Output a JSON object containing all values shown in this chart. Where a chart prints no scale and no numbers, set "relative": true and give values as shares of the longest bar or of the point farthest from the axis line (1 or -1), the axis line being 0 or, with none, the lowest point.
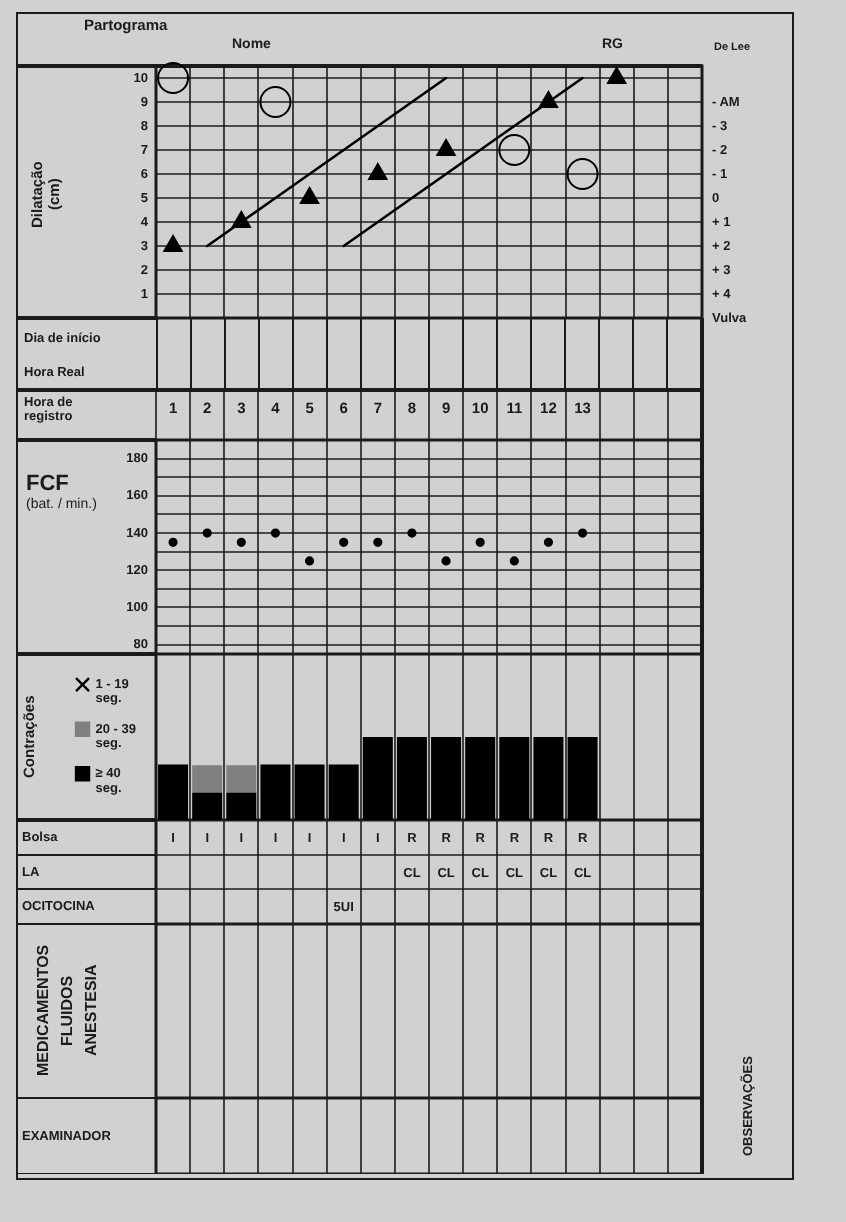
{
  "chart_data": [
    {
      "type": "scatter",
      "title": "Partograma",
      "annotations": [
        "Nome",
        "RG"
      ],
      "ylabel": "Dilatação (cm)",
      "y2label": "De Lee",
      "categories": [
        null,
        null,
        null,
        null,
        null,
        null,
        null,
        null,
        null,
        null,
        null,
        null,
        null,
        null,
        null,
        null
      ],
      "ylim": [
        0,
        10.5
      ],
      "yticks": [
        1,
        2,
        3,
        4,
        5,
        6,
        7,
        8,
        9,
        10
      ],
      "y2lim": [
        5,
        -5.5
      ],
      "y2ticks": [
        {
          "value": -4,
          "label": "- AM"
        },
        {
          "value": -3,
          "label": "- 3"
        },
        {
          "value": -2,
          "label": "- 2"
        },
        {
          "value": -1,
          "label": "- 1"
        },
        0,
        {
          "value": 1,
          "label": "+ 1"
        },
        {
          "value": 2,
          "label": "+ 2"
        },
        {
          "value": 3,
          "label": "+ 3"
        },
        {
          "value": 4,
          "label": "+ 4"
        },
        {
          "value": 5,
          "label": "Vulva"
        }
      ],
      "grid": true,
      "series": [
        {
          "type": "scatter",
          "marker": "triangle",
          "color": "#000000",
          "values": [
            3,
            null,
            4,
            null,
            5,
            null,
            6,
            null,
            7,
            null,
            null,
            9,
            null,
            10,
            null,
            null
          ]
        },
        {
          "type": "scatter",
          "marker": "circle",
          "axis": "y2",
          "color": "#000000",
          "values": [
            -5,
            null,
            null,
            -4,
            null,
            null,
            null,
            null,
            null,
            null,
            -2,
            null,
            -1,
            null,
            null,
            null
          ]
        },
        {
          "type": "line",
          "marker": "none",
          "color": "#000000",
          "values": [
            null,
            3,
            4,
            5,
            6,
            7,
            8,
            9,
            10,
            null,
            null,
            null,
            null,
            null,
            null,
            null
          ]
        },
        {
          "type": "line",
          "marker": "none",
          "color": "#000000",
          "values": [
            null,
            null,
            null,
            null,
            null,
            3,
            4,
            5,
            6,
            7,
            8,
            9,
            10,
            null,
            null,
            null
          ]
        }
      ]
    },
    {
      "type": "other",
      "annotations": [
        "Dia de início",
        "Hora Real"
      ]
    },
    {
      "type": "scatter",
      "xlabel": "Hora de registro",
      "ylabel": "FCF (bat. / min.)",
      "categories": [
        "1",
        "2",
        "3",
        "4",
        "5",
        "6",
        "7",
        "8",
        "9",
        "10",
        "11",
        "12",
        "13",
        null,
        null,
        null
      ],
      "ylim": [
        75,
        190
      ],
      "yticks": [
        80,
        {
          "value": 90,
          "label": null
        },
        100,
        {
          "value": 110,
          "label": null
        },
        120,
        {
          "value": 130,
          "label": null
        },
        140,
        {
          "value": 150,
          "label": null
        },
        160,
        {
          "value": 170,
          "label": null
        },
        180
      ],
      "grid": true,
      "marker": "circle",
      "color": "#000000",
      "values": [
        135,
        140,
        135,
        140,
        125,
        135,
        135,
        140,
        125,
        135,
        125,
        135,
        140,
        null,
        null,
        null
      ]
    },
    {
      "type": "bar",
      "stacked": true,
      "relative": true,
      "ylabel": "Contrações",
      "legend": "left",
      "grid": "x",
      "categories": [
        null,
        null,
        null,
        null,
        null,
        null,
        null,
        null,
        null,
        null,
        null,
        null,
        null,
        null,
        null,
        null
      ],
      "series": [
        {
          "name": "≥ 40 seg.",
          "color": "#000000",
          "marker": "square",
          "values": [
            0.67,
            0.33,
            0.33,
            0.67,
            0.67,
            0.67,
            1,
            1,
            1,
            1,
            1,
            1,
            1,
            null,
            null,
            null
          ]
        },
        {
          "name": "20 - 39 seg.",
          "color": "#808080",
          "marker": "square",
          "values": [
            null,
            0.33,
            0.33,
            null,
            null,
            null,
            null,
            null,
            null,
            null,
            null,
            null,
            null,
            null,
            null,
            null
          ]
        },
        {
          "name": "1 - 19 seg.",
          "color": "#000000",
          "marker": "cross",
          "values": [
            null,
            null,
            null,
            null,
            null,
            null,
            null,
            null,
            null,
            null,
            null,
            null,
            null,
            null,
            null,
            null
          ]
        }
      ]
    },
    {
      "type": "heatmap",
      "grid": true,
      "categories": [
        null,
        null,
        null,
        null,
        null,
        null,
        null,
        null,
        null,
        null,
        null,
        null,
        null,
        null,
        null,
        null
      ],
      "y_categories": [
        "Bolsa",
        "LA",
        "OCITOCINA"
      ],
      "cells": [
        [
          null,
          null,
          null,
          null,
          null,
          null,
          null,
          null,
          null,
          null,
          null,
          null,
          null,
          null,
          null,
          null
        ],
        [
          null,
          null,
          null,
          null,
          null,
          null,
          null,
          null,
          null,
          null,
          null,
          null,
          null,
          null,
          null,
          null
        ],
        [
          null,
          null,
          null,
          null,
          null,
          null,
          null,
          null,
          null,
          null,
          null,
          null,
          null,
          null,
          null,
          null
        ]
      ],
      "cell_labels": [
        [
          "I",
          "I",
          "I",
          "I",
          "I",
          "I",
          "I",
          "R",
          "R",
          "R",
          "R",
          "R",
          "R",
          null,
          null,
          null
        ],
        [
          null,
          null,
          null,
          null,
          null,
          null,
          null,
          "CL",
          "CL",
          "CL",
          "CL",
          "CL",
          "CL",
          null,
          null,
          null
        ],
        [
          null,
          null,
          null,
          null,
          null,
          "5UI",
          null,
          null,
          null,
          null,
          null,
          null,
          null,
          null,
          null,
          null
        ]
      ]
    },
    {
      "type": "heatmap",
      "grid": true,
      "categories": [
        null,
        null,
        null,
        null,
        null,
        null,
        null,
        null,
        null,
        null,
        null,
        null,
        null,
        null,
        null,
        null
      ],
      "y_categories": [
        "MEDICAMENTOS FLUIDOS ANESTESIA"
      ],
      "cells": [
        [
          null,
          null,
          null,
          null,
          null,
          null,
          null,
          null,
          null,
          null,
          null,
          null,
          null,
          null,
          null,
          null
        ]
      ]
    },
    {
      "type": "heatmap",
      "grid": true,
      "categories": [
        null,
        null,
        null,
        null,
        null,
        null,
        null,
        null,
        null,
        null,
        null,
        null,
        null,
        null,
        null,
        null
      ],
      "y_categories": [
        "EXAMINADOR"
      ],
      "cells": [
        [
          null,
          null,
          null,
          null,
          null,
          null,
          null,
          null,
          null,
          null,
          null,
          null,
          null,
          null,
          null,
          null
        ]
      ],
      "annotations": [
        "OBSERVAÇÕES"
      ]
    }
  ]
}
